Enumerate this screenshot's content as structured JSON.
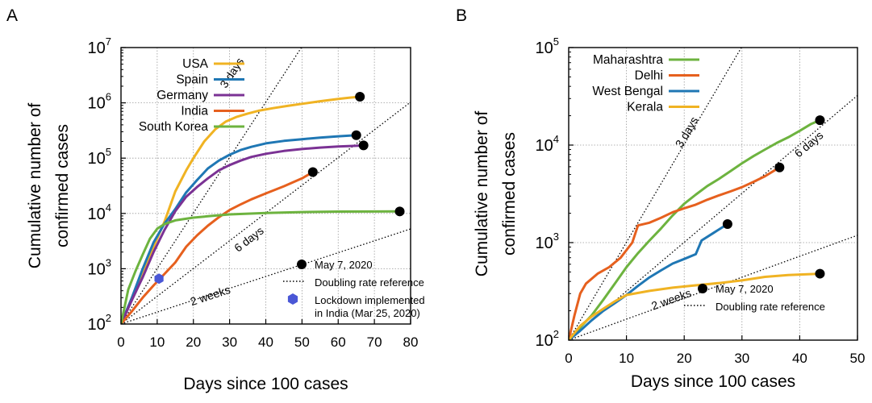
{
  "chart_data": [
    {
      "type": "line",
      "panel_label": "A",
      "xlabel": "Days since 100 cases",
      "ylabel_line1": "Cumulative number of",
      "ylabel_line2": "confirmed cases",
      "xlim": [
        0,
        80
      ],
      "ylog": true,
      "ylim": [
        100,
        10000000
      ],
      "xticks": [
        0,
        10,
        20,
        30,
        40,
        50,
        60,
        70,
        80
      ],
      "yticks": [
        {
          "base": "10",
          "exp": "2"
        },
        {
          "base": "10",
          "exp": "3"
        },
        {
          "base": "10",
          "exp": "4"
        },
        {
          "base": "10",
          "exp": "5"
        },
        {
          "base": "10",
          "exp": "6"
        },
        {
          "base": "10",
          "exp": "7"
        }
      ],
      "grid": true,
      "legend_position": "top-left",
      "series": [
        {
          "name": "USA",
          "color": "#f0b323",
          "x": [
            0,
            3,
            6,
            9,
            12,
            15,
            18,
            20,
            23,
            26,
            29,
            32,
            35,
            38,
            42,
            46,
            50,
            55,
            60,
            63,
            66
          ],
          "y": [
            100,
            300,
            900,
            2500,
            7000,
            25000,
            60000,
            100000,
            200000,
            330000,
            460000,
            560000,
            640000,
            720000,
            800000,
            880000,
            960000,
            1070000,
            1180000,
            1240000,
            1290000
          ]
        },
        {
          "name": "Spain",
          "color": "#1f77b4",
          "x": [
            0,
            3,
            6,
            9,
            12,
            15,
            18,
            21,
            24,
            27,
            30,
            33,
            36,
            40,
            45,
            50,
            55,
            60,
            65
          ],
          "y": [
            100,
            300,
            1000,
            3000,
            6500,
            12000,
            24000,
            40000,
            65000,
            90000,
            115000,
            140000,
            160000,
            185000,
            205000,
            220000,
            235000,
            248000,
            260000
          ]
        },
        {
          "name": "Germany",
          "color": "#7b3294",
          "x": [
            0,
            3,
            6,
            9,
            12,
            15,
            18,
            21,
            24,
            27,
            30,
            33,
            36,
            40,
            45,
            50,
            55,
            60,
            65,
            67
          ],
          "y": [
            100,
            270,
            700,
            2000,
            5000,
            11000,
            20000,
            30000,
            43000,
            60000,
            75000,
            90000,
            105000,
            120000,
            135000,
            146000,
            155000,
            162000,
            167000,
            170000
          ]
        },
        {
          "name": "India",
          "color": "#e6601e",
          "x": [
            0,
            3,
            6,
            9,
            12,
            15,
            18,
            21,
            24,
            27,
            30,
            33,
            36,
            40,
            45,
            50,
            53
          ],
          "y": [
            100,
            170,
            300,
            500,
            800,
            1300,
            2500,
            4000,
            6000,
            8500,
            11500,
            14500,
            18000,
            23000,
            31000,
            43000,
            56000
          ]
        },
        {
          "name": "South Korea",
          "color": "#6db33f",
          "x": [
            0,
            2,
            4,
            6,
            8,
            10,
            12,
            15,
            20,
            25,
            30,
            40,
            50,
            60,
            70,
            77
          ],
          "y": [
            100,
            420,
            900,
            1800,
            3500,
            5300,
            6400,
            7500,
            8400,
            9000,
            9600,
            10200,
            10600,
            10800,
            10850,
            10870
          ]
        }
      ],
      "end_markers": [
        {
          "x": 66,
          "y": 1290000
        },
        {
          "x": 65,
          "y": 260000
        },
        {
          "x": 67,
          "y": 170000
        },
        {
          "x": 53,
          "y": 56000
        },
        {
          "x": 77,
          "y": 10870
        }
      ],
      "lockdown_marker": {
        "x": 10.5,
        "y": 660,
        "color": "#4a57d6"
      },
      "reference_lines": [
        {
          "label": "3 days",
          "doubling_days": 3,
          "label_x": 31.5,
          "label_y": 3200000
        },
        {
          "label": "6 days",
          "doubling_days": 6,
          "label_x": 36,
          "label_y": 3000
        },
        {
          "label": "2 weeks",
          "doubling_days": 14,
          "label_x": 25,
          "label_y": 280
        }
      ],
      "legend2": [
        {
          "kind": "dot",
          "label": "May 7, 2020"
        },
        {
          "kind": "dotted",
          "label": "Doubling rate reference"
        },
        {
          "kind": "hexagon",
          "label": "Lockdown implemented",
          "label2": "in India (Mar 25, 2020)"
        }
      ]
    },
    {
      "type": "line",
      "panel_label": "B",
      "xlabel": "Days since 100 cases",
      "ylabel_line1": "Cumulative number of",
      "ylabel_line2": "confirmed cases",
      "xlim": [
        0,
        50
      ],
      "ylog": true,
      "ylim": [
        100,
        100000
      ],
      "xticks": [
        0,
        10,
        20,
        30,
        40,
        50
      ],
      "yticks": [
        {
          "base": "10",
          "exp": "2"
        },
        {
          "base": "10",
          "exp": "3"
        },
        {
          "base": "10",
          "exp": "4"
        },
        {
          "base": "10",
          "exp": "5"
        }
      ],
      "grid": true,
      "legend_position": "top-left",
      "series": [
        {
          "name": "Maharashtra",
          "color": "#6db33f",
          "x": [
            0,
            2,
            4,
            6,
            8,
            10,
            12,
            14,
            16,
            18,
            20,
            22,
            24,
            26,
            28,
            30,
            32,
            34,
            36,
            38,
            40,
            42,
            43.5
          ],
          "y": [
            100,
            135,
            180,
            260,
            380,
            560,
            780,
            1050,
            1400,
            1900,
            2500,
            3100,
            3800,
            4500,
            5400,
            6500,
            7700,
            9000,
            10500,
            12000,
            14000,
            16500,
            18000
          ]
        },
        {
          "name": "Delhi",
          "color": "#e6601e",
          "x": [
            0,
            1,
            2,
            3,
            5,
            7,
            9,
            11,
            12,
            14,
            16,
            18,
            20,
            22,
            24,
            26,
            28,
            30,
            32,
            34,
            36.5
          ],
          "y": [
            100,
            180,
            300,
            380,
            480,
            560,
            700,
            1000,
            1500,
            1600,
            1800,
            2050,
            2250,
            2450,
            2750,
            3050,
            3350,
            3700,
            4200,
            4800,
            5900
          ]
        },
        {
          "name": "West Bengal",
          "color": "#1f77b4",
          "x": [
            0,
            2,
            4,
            6,
            8,
            10,
            12,
            14,
            16,
            18,
            20,
            22,
            23,
            25,
            27.5
          ],
          "y": [
            100,
            125,
            160,
            200,
            240,
            290,
            360,
            440,
            520,
            610,
            680,
            760,
            1050,
            1250,
            1550
          ]
        },
        {
          "name": "Kerala",
          "color": "#f0b323",
          "x": [
            0,
            2,
            4,
            6,
            8,
            10,
            14,
            18,
            22,
            26,
            30,
            34,
            38,
            43.5
          ],
          "y": [
            100,
            140,
            175,
            210,
            250,
            290,
            320,
            345,
            365,
            385,
            410,
            445,
            465,
            480
          ]
        }
      ],
      "end_markers": [
        {
          "x": 43.5,
          "y": 18000
        },
        {
          "x": 36.5,
          "y": 5900
        },
        {
          "x": 27.5,
          "y": 1550
        },
        {
          "x": 43.5,
          "y": 480
        }
      ],
      "reference_lines": [
        {
          "label": "3 days",
          "doubling_days": 3,
          "label_x": 21,
          "label_y": 13000
        },
        {
          "label": "6 days",
          "doubling_days": 6,
          "label_x": 42,
          "label_y": 9500
        },
        {
          "label": "2 weeks",
          "doubling_days": 14,
          "label_x": 18,
          "label_y": 240
        }
      ],
      "legend2": [
        {
          "kind": "dot",
          "label": "May 7, 2020"
        },
        {
          "kind": "dotted",
          "label": "Doubling rate reference"
        }
      ]
    }
  ]
}
